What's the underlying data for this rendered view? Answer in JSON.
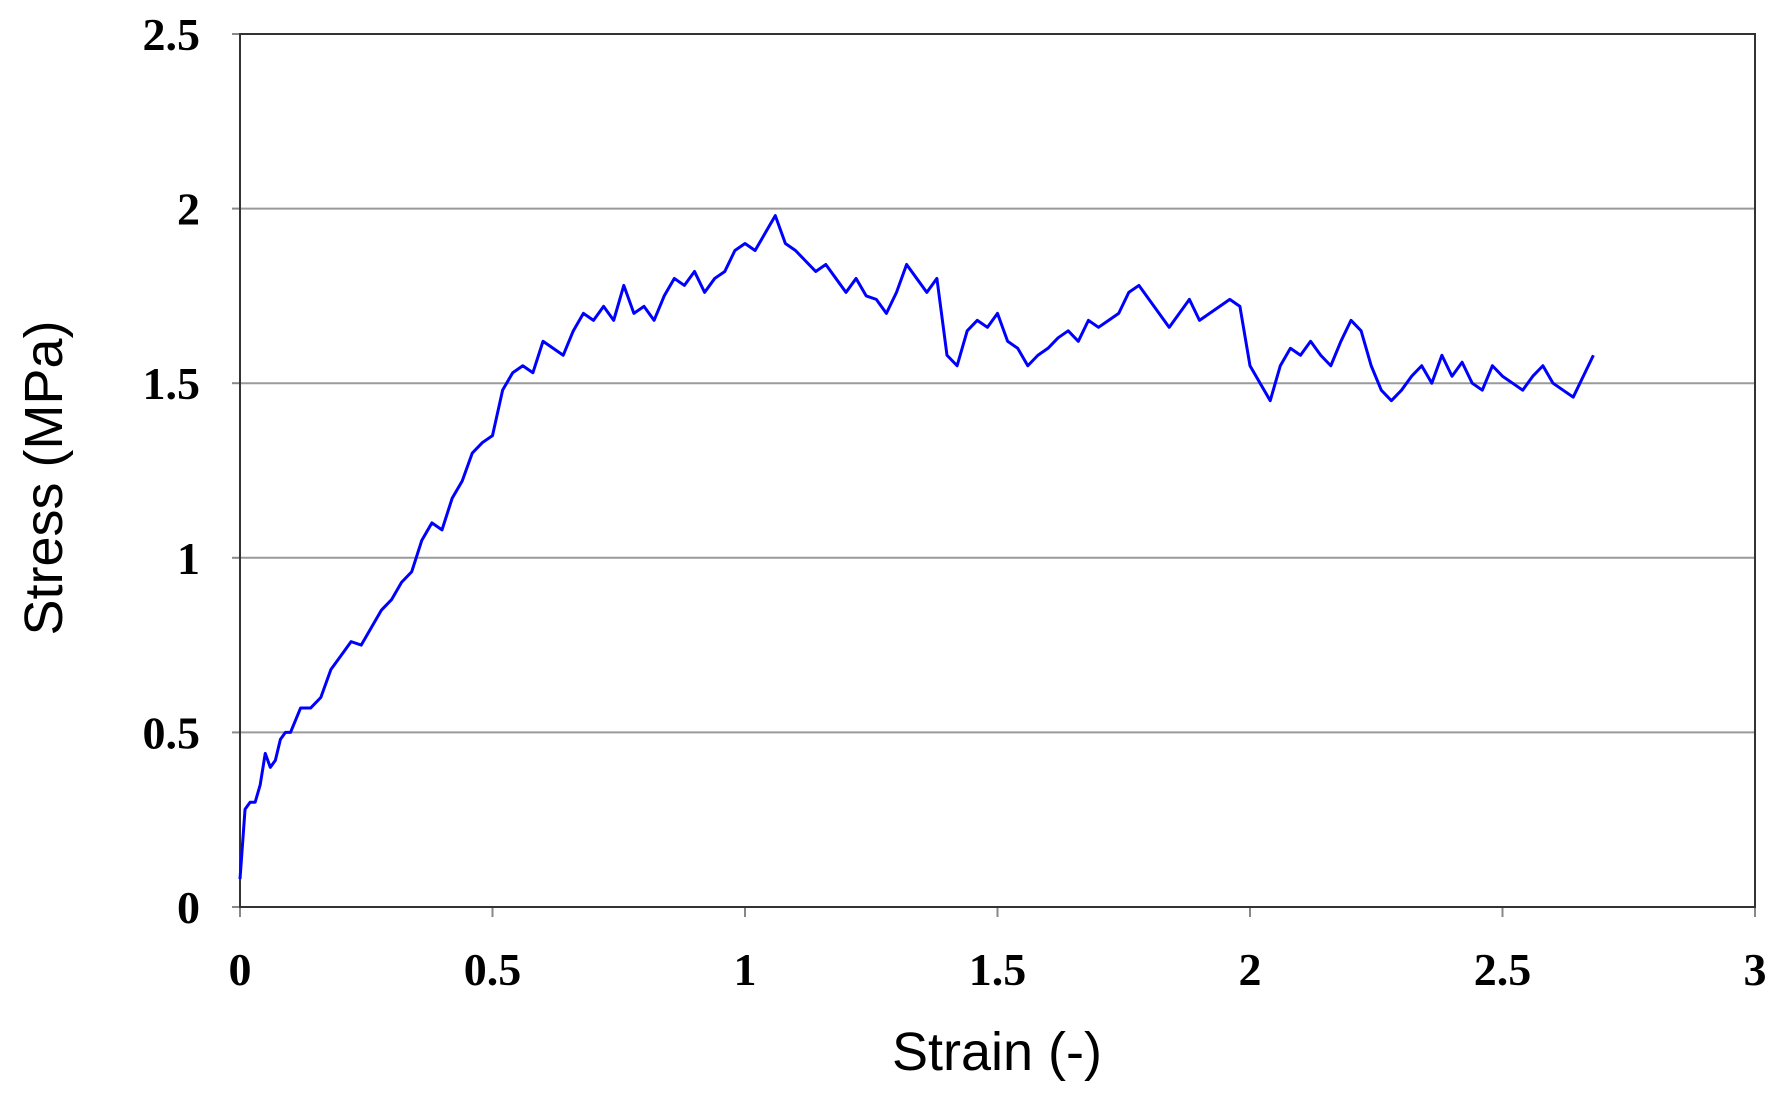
{
  "chart_data": {
    "type": "line",
    "x_label": "Strain (-)",
    "y_label": "Stress (MPa)",
    "xlim": [
      0,
      3
    ],
    "xticks": [
      0,
      0.5,
      1,
      1.5,
      2,
      2.5,
      3
    ],
    "ylim": [
      0,
      2.5
    ],
    "yticks": [
      0,
      0.5,
      1,
      1.5,
      2,
      2.5
    ],
    "grid": true,
    "x": [
      0,
      0.01,
      0.02,
      0.03,
      0.04,
      0.05,
      0.06,
      0.07,
      0.08,
      0.09,
      0.1,
      0.12,
      0.14,
      0.16,
      0.18,
      0.2,
      0.22,
      0.24,
      0.26,
      0.28,
      0.3,
      0.32,
      0.34,
      0.36,
      0.38,
      0.4,
      0.42,
      0.44,
      0.46,
      0.48,
      0.5,
      0.52,
      0.54,
      0.56,
      0.58,
      0.6,
      0.62,
      0.64,
      0.66,
      0.68,
      0.7,
      0.72,
      0.74,
      0.76,
      0.78,
      0.8,
      0.82,
      0.84,
      0.86,
      0.88,
      0.9,
      0.92,
      0.94,
      0.96,
      0.98,
      1.0,
      1.02,
      1.04,
      1.06,
      1.08,
      1.1,
      1.12,
      1.14,
      1.16,
      1.18,
      1.2,
      1.22,
      1.24,
      1.26,
      1.28,
      1.3,
      1.32,
      1.34,
      1.36,
      1.38,
      1.4,
      1.42,
      1.44,
      1.46,
      1.48,
      1.5,
      1.52,
      1.54,
      1.56,
      1.58,
      1.6,
      1.62,
      1.64,
      1.66,
      1.68,
      1.7,
      1.72,
      1.74,
      1.76,
      1.78,
      1.8,
      1.82,
      1.84,
      1.86,
      1.88,
      1.9,
      1.92,
      1.94,
      1.96,
      1.98,
      2.0,
      2.02,
      2.04,
      2.06,
      2.08,
      2.1,
      2.12,
      2.14,
      2.16,
      2.18,
      2.2,
      2.22,
      2.24,
      2.26,
      2.28,
      2.3,
      2.32,
      2.34,
      2.36,
      2.38,
      2.4,
      2.42,
      2.44,
      2.46,
      2.48,
      2.5,
      2.52,
      2.54,
      2.56,
      2.58,
      2.6,
      2.62,
      2.64,
      2.66,
      2.68
    ],
    "series": [
      {
        "color": "#0000ff",
        "values": [
          0.08,
          0.28,
          0.3,
          0.3,
          0.35,
          0.44,
          0.4,
          0.42,
          0.48,
          0.5,
          0.5,
          0.57,
          0.57,
          0.6,
          0.68,
          0.72,
          0.76,
          0.75,
          0.8,
          0.85,
          0.88,
          0.93,
          0.96,
          1.05,
          1.1,
          1.08,
          1.17,
          1.22,
          1.3,
          1.33,
          1.35,
          1.48,
          1.53,
          1.55,
          1.53,
          1.62,
          1.6,
          1.58,
          1.65,
          1.7,
          1.68,
          1.72,
          1.68,
          1.78,
          1.7,
          1.72,
          1.68,
          1.75,
          1.8,
          1.78,
          1.82,
          1.76,
          1.8,
          1.82,
          1.88,
          1.9,
          1.88,
          1.93,
          1.98,
          1.9,
          1.88,
          1.85,
          1.82,
          1.84,
          1.8,
          1.76,
          1.8,
          1.75,
          1.74,
          1.7,
          1.76,
          1.84,
          1.8,
          1.76,
          1.8,
          1.58,
          1.55,
          1.65,
          1.68,
          1.66,
          1.7,
          1.62,
          1.6,
          1.55,
          1.58,
          1.6,
          1.63,
          1.65,
          1.62,
          1.68,
          1.66,
          1.68,
          1.7,
          1.76,
          1.78,
          1.74,
          1.7,
          1.66,
          1.7,
          1.74,
          1.68,
          1.7,
          1.72,
          1.74,
          1.72,
          1.55,
          1.5,
          1.45,
          1.55,
          1.6,
          1.58,
          1.62,
          1.58,
          1.55,
          1.62,
          1.68,
          1.65,
          1.55,
          1.48,
          1.45,
          1.48,
          1.52,
          1.55,
          1.5,
          1.58,
          1.52,
          1.56,
          1.5,
          1.48,
          1.55,
          1.52,
          1.5,
          1.48,
          1.52,
          1.55,
          1.5,
          1.48,
          1.46,
          1.52,
          1.58
        ]
      }
    ]
  }
}
